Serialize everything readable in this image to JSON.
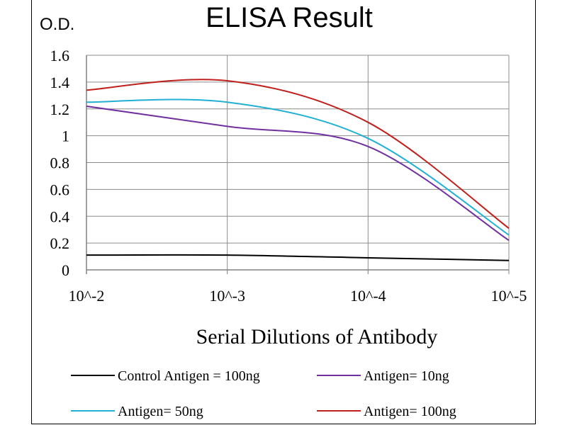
{
  "chart_data": {
    "type": "line",
    "title": "ELISA Result",
    "ylabel": "O.D.",
    "xlabel": "Serial Dilutions  of Antibody",
    "categories": [
      "10^-2",
      "10^-3",
      "10^-4",
      "10^-5"
    ],
    "yticks": [
      "1.6",
      "1.4",
      "1.2",
      "1",
      "0.8",
      "0.6",
      "0.4",
      "0.2",
      "0"
    ],
    "ylim": [
      0,
      1.6
    ],
    "grid": true,
    "legend_position": "bottom",
    "series": [
      {
        "name": "Control Antigen = 100ng",
        "color": "#000000",
        "values": [
          0.11,
          0.11,
          0.09,
          0.07
        ]
      },
      {
        "name": "Antigen= 10ng",
        "color": "#7030a0",
        "values": [
          1.22,
          1.07,
          0.92,
          0.22
        ]
      },
      {
        "name": "Antigen= 50ng",
        "color": "#21b0d4",
        "values": [
          1.25,
          1.25,
          0.98,
          0.26
        ]
      },
      {
        "name": "Antigen= 100ng",
        "color": "#c0201c",
        "values": [
          1.34,
          1.41,
          1.1,
          0.31
        ]
      }
    ]
  }
}
